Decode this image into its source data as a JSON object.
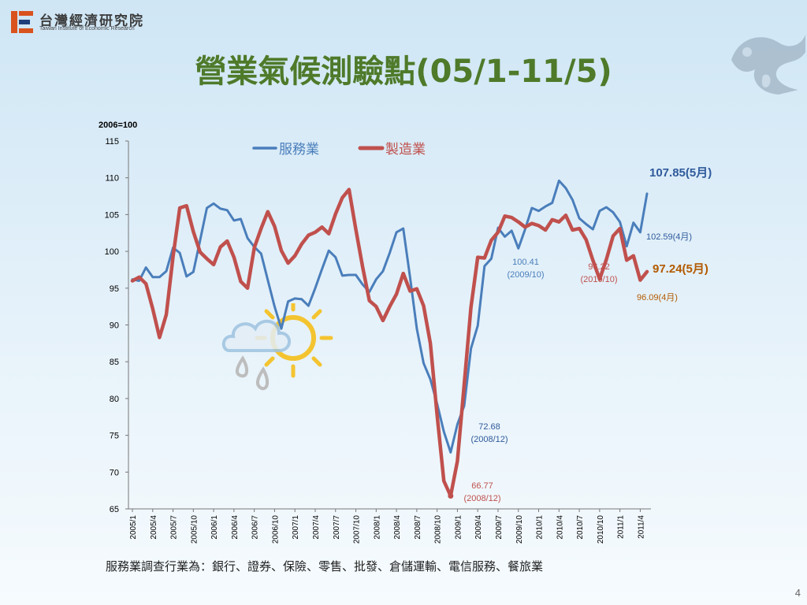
{
  "header": {
    "logo_text_cn": "台灣經濟研究院",
    "logo_text_en": "Taiwan Institute of Economic Research"
  },
  "slide": {
    "title": "營業氣候測驗點(05/1-11/5)",
    "footnote": "服務業調查行業為：銀行、證券、保險、零售、批發、倉儲運輸、電信服務、餐旅業",
    "page_number": "4"
  },
  "chart_data": {
    "type": "line",
    "unit_label": "2006=100",
    "ylim": [
      65,
      115
    ],
    "yticks": [
      115,
      110,
      105,
      100,
      95,
      90,
      85,
      80,
      75,
      70,
      65
    ],
    "x_tick_labels": [
      "2005/1",
      "2005/4",
      "2005/7",
      "2005/10",
      "2006/1",
      "2006/4",
      "2006/7",
      "2006/10",
      "2007/1",
      "2007/4",
      "2007/7",
      "2007/10",
      "2008/1",
      "2008/4",
      "2008/7",
      "2008/10",
      "2009/1",
      "2009/4",
      "2009/7",
      "2009/10",
      "2010/1",
      "2010/4",
      "2010/7",
      "2010/10",
      "2011/1",
      "2011/4"
    ],
    "legend_position": "top",
    "series": [
      {
        "name": "服務業",
        "color": "#4a7ebb",
        "values": [
          96.2,
          96.0,
          97.8,
          96.5,
          96.5,
          97.3,
          100.5,
          99.8,
          96.6,
          97.2,
          101.5,
          105.9,
          106.5,
          105.8,
          105.6,
          104.2,
          104.4,
          101.8,
          100.6,
          99.7,
          96.1,
          92.5,
          89.5,
          93.2,
          93.6,
          93.5,
          92.6,
          95.0,
          97.6,
          100.1,
          99.2,
          96.7,
          96.8,
          96.8,
          95.5,
          94.5,
          96.2,
          97.3,
          99.8,
          102.6,
          103.1,
          96.5,
          89.5,
          84.8,
          82.6,
          79.3,
          75.5,
          72.68,
          76.5,
          79.0,
          86.8,
          89.9,
          98.0,
          99.0,
          103.2,
          102.0,
          102.8,
          100.41,
          103.0,
          105.9,
          105.5,
          106.1,
          106.6,
          109.6,
          108.6,
          107.0,
          104.5,
          103.7,
          103.0,
          105.5,
          106.0,
          105.3,
          104.0,
          100.7,
          103.9,
          102.59,
          107.85
        ]
      },
      {
        "name": "製造業",
        "color": "#c0504d",
        "values": [
          96.0,
          96.5,
          95.6,
          92.2,
          88.3,
          91.4,
          99.3,
          105.9,
          106.2,
          102.7,
          99.9,
          99.0,
          98.2,
          100.6,
          101.4,
          99.2,
          95.9,
          95.0,
          100.5,
          103.1,
          105.4,
          103.4,
          100.1,
          98.4,
          99.4,
          101.0,
          102.2,
          102.6,
          103.3,
          102.4,
          105.1,
          107.3,
          108.4,
          103.0,
          97.9,
          93.3,
          92.5,
          90.6,
          92.5,
          94.2,
          97.0,
          94.6,
          94.9,
          92.6,
          87.5,
          77.8,
          68.8,
          66.77,
          71.5,
          81.9,
          92.4,
          99.2,
          99.1,
          101.5,
          102.6,
          104.8,
          104.6,
          104.0,
          103.3,
          103.8,
          103.5,
          102.9,
          104.3,
          104.0,
          104.9,
          102.9,
          103.1,
          101.6,
          98.8,
          96.22,
          98.9,
          102.1,
          103.1,
          98.8,
          99.4,
          96.09,
          97.24
        ]
      }
    ],
    "annotations": [
      {
        "text": "107.85(5月)",
        "series": "服務業",
        "index": 76
      },
      {
        "text": "102.59(4月)",
        "series": "服務業",
        "index": 75
      },
      {
        "text": "100.41",
        "text2": "(2009/10)",
        "series": "服務業",
        "index": 57
      },
      {
        "text": "72.68",
        "text2": "(2008/12)",
        "series": "服務業",
        "index": 47
      },
      {
        "text": "97.24(5月)",
        "series": "製造業",
        "index": 76
      },
      {
        "text": "96.09(4月)",
        "series": "製造業",
        "index": 75
      },
      {
        "text": "96.22",
        "text2": "(2010/10)",
        "series": "製造業",
        "index": 69
      },
      {
        "text": "66.77",
        "text2": "(2008/12)",
        "series": "製造業",
        "index": 47
      }
    ]
  }
}
